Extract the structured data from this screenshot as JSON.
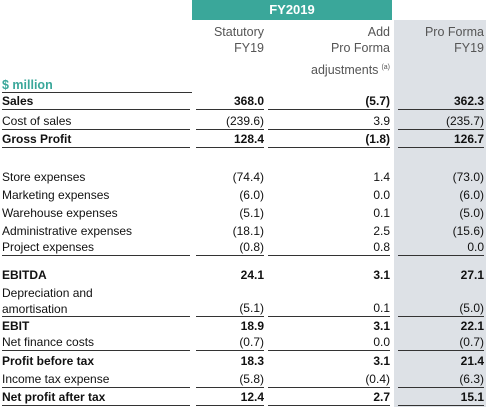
{
  "header": {
    "period": "FY2019",
    "columns": [
      [
        "Statutory",
        "FY19"
      ],
      [
        "Add",
        "Pro Forma",
        "adjustments"
      ],
      [
        "Pro Forma",
        "FY19"
      ]
    ],
    "note": "(a)"
  },
  "table": {
    "unit": "$ million",
    "rows": [
      [
        "Sales",
        "368.0",
        "(5.7)",
        "362.3"
      ],
      [
        "Cost of sales",
        "(239.6)",
        "3.9",
        "(235.7)"
      ],
      [
        "Gross Profit",
        "128.4",
        "(1.8)",
        "126.7"
      ],
      [
        "Store expenses",
        "(74.4)",
        "1.4",
        "(73.0)"
      ],
      [
        "Marketing expenses",
        "(6.0)",
        "0.0",
        "(6.0)"
      ],
      [
        "Warehouse expenses",
        "(5.1)",
        "0.1",
        "(5.0)"
      ],
      [
        "Administrative expenses",
        "(18.1)",
        "2.5",
        "(15.6)"
      ],
      [
        "Project expenses",
        "(0.8)",
        "0.8",
        "0.0"
      ],
      [
        "EBITDA",
        "24.1",
        "3.1",
        "27.1"
      ],
      [
        "Depreciation and amortisation",
        "(5.1)",
        "0.1",
        "(5.0)"
      ],
      [
        "EBIT",
        "18.9",
        "3.1",
        "22.1"
      ],
      [
        "Net finance costs",
        "(0.7)",
        "0.0",
        "(0.7)"
      ],
      [
        "Profit before tax",
        "18.3",
        "3.1",
        "21.4"
      ],
      [
        "Income tax expense",
        "(5.8)",
        "(0.4)",
        "(6.3)"
      ],
      [
        "Net profit after tax",
        "12.4",
        "2.7",
        "15.1"
      ]
    ]
  }
}
